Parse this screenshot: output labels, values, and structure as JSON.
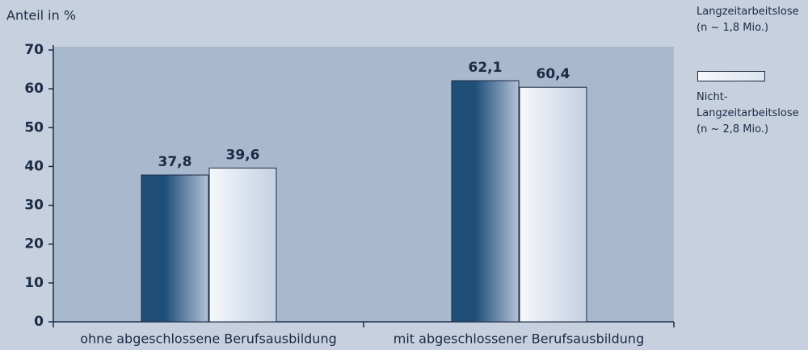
{
  "chart_data": {
    "type": "bar",
    "y_label": "Anteil in %",
    "categories": [
      "ohne abgeschlossene Berufsausbildung",
      "mit abgeschlossener Berufsausbildung"
    ],
    "series": [
      {
        "name": "Langzeitarbeitslose (n ~ 1,8 Mio.)",
        "color": "#1f4e79",
        "values": [
          37.8,
          62.1
        ],
        "value_labels": [
          "37,8",
          "62,1"
        ]
      },
      {
        "name": "Nicht-Langzeitarbeitslose (n ~ 2,8 Mio.)",
        "color": "#dde4ef",
        "values": [
          39.6,
          60.4
        ],
        "value_labels": [
          "39,6",
          "60,4"
        ]
      }
    ],
    "ylim": [
      0,
      70
    ],
    "yticks": [
      0,
      10,
      20,
      30,
      40,
      50,
      60,
      70
    ]
  }
}
